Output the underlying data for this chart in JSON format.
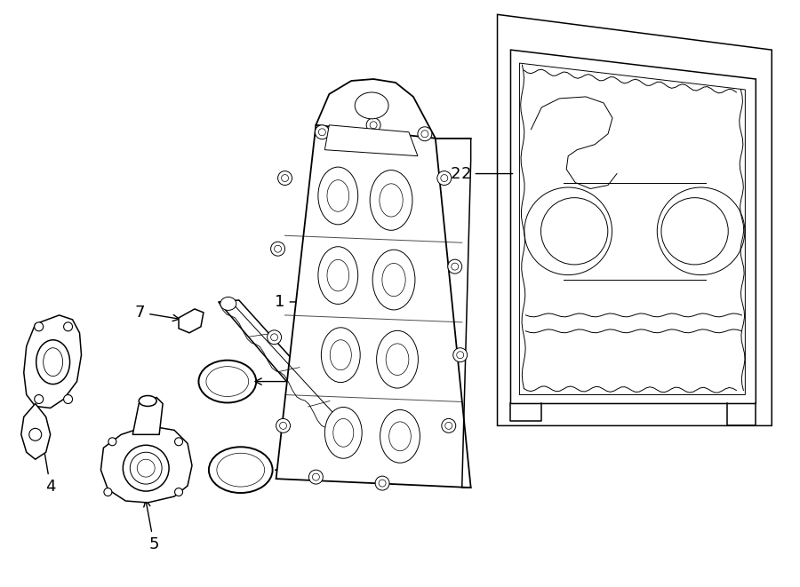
{
  "background_color": "#ffffff",
  "line_color": "#000000",
  "fig_width": 9.0,
  "fig_height": 6.61,
  "dpi": 100,
  "label_fontsize": 13
}
